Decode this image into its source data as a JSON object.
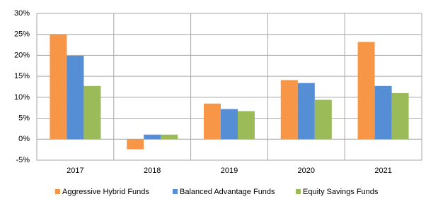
{
  "chart_data": {
    "type": "bar",
    "categories": [
      "2017",
      "2018",
      "2019",
      "2020",
      "2021"
    ],
    "series": [
      {
        "name": "Aggressive Hybrid Funds",
        "color": "#f79646",
        "values": [
          25,
          -2.4,
          8.5,
          14.1,
          23.2
        ]
      },
      {
        "name": "Balanced Advantage Funds",
        "color": "#558ed5",
        "values": [
          19.9,
          1.1,
          7.2,
          13.4,
          12.7
        ]
      },
      {
        "name": "Equity Savings Funds",
        "color": "#9bbb59",
        "values": [
          12.7,
          1.1,
          6.7,
          9.4,
          11.0
        ]
      }
    ],
    "ylim": [
      -5,
      30
    ],
    "yticks": [
      {
        "value": -5,
        "label": "-5%"
      },
      {
        "value": 0,
        "label": "0%"
      },
      {
        "value": 5,
        "label": "5%"
      },
      {
        "value": 10,
        "label": "10%"
      },
      {
        "value": 15,
        "label": "15%"
      },
      {
        "value": 20,
        "label": "20%"
      },
      {
        "value": 25,
        "label": "25%"
      },
      {
        "value": 30,
        "label": "30%"
      }
    ],
    "grid": true,
    "legend": "bottom"
  }
}
